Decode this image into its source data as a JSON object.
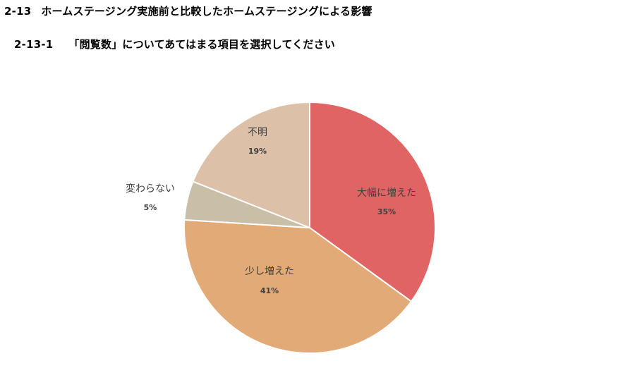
{
  "section": {
    "number": "2-13",
    "title": "ホームステージング実施前と比較したホームステージングによる影響"
  },
  "subsection": {
    "number": "2-13-1",
    "title": "「閲覧数」についてあてはまる項目を選択してください"
  },
  "chart_data": {
    "type": "pie",
    "slices": [
      {
        "label": "大幅に増えた",
        "value": 35,
        "value_label": "35%",
        "color": "#E06464"
      },
      {
        "label": "少し増えた",
        "value": 41,
        "value_label": "41%",
        "color": "#E2AA76"
      },
      {
        "label": "変わらない",
        "value": 5,
        "value_label": "5%",
        "color": "#C9BFA9"
      },
      {
        "label": "不明",
        "value": 19,
        "value_label": "19%",
        "color": "#DCC0A7"
      }
    ],
    "start_angle": "12 o'clock",
    "direction": "clockwise",
    "slice_border_color": "#ffffff"
  }
}
